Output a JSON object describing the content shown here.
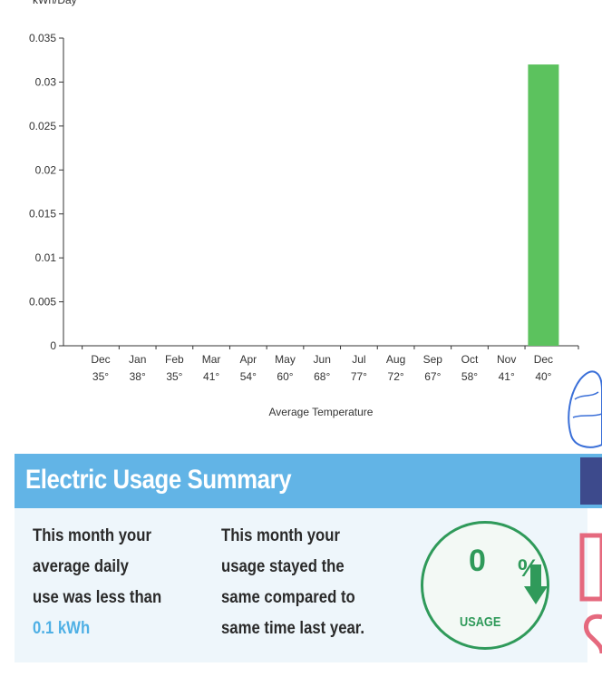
{
  "chart_data": {
    "type": "bar",
    "title": "",
    "ylabel": "kWh/Day",
    "xlabel": "Average Temperature",
    "categories": [
      "Dec",
      "Jan",
      "Feb",
      "Mar",
      "Apr",
      "May",
      "Jun",
      "Jul",
      "Aug",
      "Sep",
      "Oct",
      "Nov",
      "Dec"
    ],
    "temperatures": [
      "35°",
      "38°",
      "35°",
      "41°",
      "54°",
      "60°",
      "68°",
      "77°",
      "72°",
      "67°",
      "58°",
      "41°",
      "40°"
    ],
    "values": [
      0,
      0,
      0,
      0,
      0,
      0,
      0,
      0,
      0,
      0,
      0,
      0,
      0.032
    ],
    "ylim": [
      0,
      0.035
    ],
    "yticks": [
      "0",
      "0.005",
      "0.01",
      "0.015",
      "0.02",
      "0.025",
      "0.03",
      "0.035"
    ],
    "grid": false,
    "bar_color": "#5cc25e"
  },
  "summary": {
    "title": "Electric Usage Summary",
    "left_lines": [
      "This month your",
      "average daily",
      "use was less than"
    ],
    "left_highlight": "0.1 kWh",
    "middle_lines": [
      "This month your",
      "usage stayed the",
      "same compared to",
      "same time last year."
    ]
  },
  "usage_badge": {
    "value": "0",
    "percent_symbol": "%",
    "label": "USAGE",
    "color": "#2f9a5a",
    "icon": "down-arrow-icon"
  },
  "colors": {
    "banner": "#62b4e6",
    "highlight": "#4fb0e5",
    "body_bg": "#eef6fb"
  }
}
